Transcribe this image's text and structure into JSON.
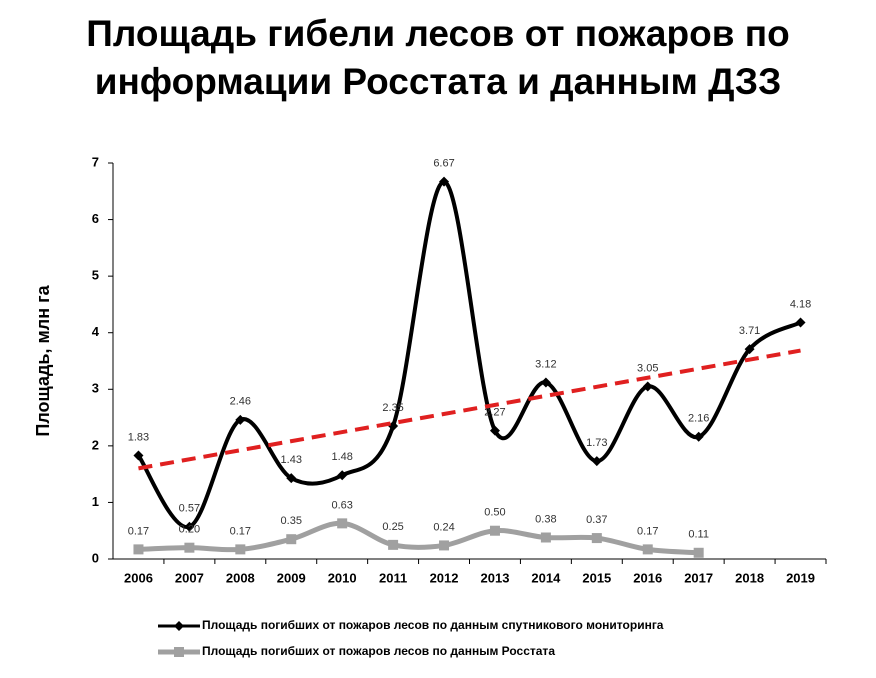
{
  "chart_data": {
    "type": "line",
    "title": "Площадь гибели лесов от пожаров по информации Росстата и данным ДЗЗ",
    "y_label": "Площадь, млн га",
    "categories": [
      "2006",
      "2007",
      "2008",
      "2009",
      "2010",
      "2011",
      "2012",
      "2013",
      "2014",
      "2015",
      "2016",
      "2017",
      "2018",
      "2019"
    ],
    "series": [
      {
        "name": "Площадь погибших от пожаров лесов по данным спутникового мониторинга",
        "color": "#000000",
        "marker": "diamond",
        "values": [
          1.83,
          0.57,
          2.46,
          1.43,
          1.48,
          2.35,
          6.67,
          2.27,
          3.12,
          1.73,
          3.05,
          2.16,
          3.71,
          4.18
        ],
        "value_labels": [
          "1.83",
          "0.57",
          "2.46",
          "1.43",
          "1.48",
          "2.35",
          "6.67",
          "2.27",
          "3.12",
          "1.73",
          "3.05",
          "2.16",
          "3.71",
          "4.18"
        ],
        "trendline": true,
        "trendline_color": "#e02020"
      },
      {
        "name": "Площадь погибших от пожаров лесов по данным Росстата",
        "color": "#a0a0a0",
        "marker": "square",
        "values": [
          0.17,
          0.2,
          0.17,
          0.35,
          0.63,
          0.25,
          0.24,
          0.5,
          0.38,
          0.37,
          0.17,
          0.11,
          null,
          null
        ],
        "value_labels": [
          "0.17",
          "0.20",
          "0.17",
          "0.35",
          "0.63",
          "0.25",
          "0.24",
          "0.50",
          "0.38",
          "0.37",
          "0.17",
          "0.11",
          null,
          null
        ]
      }
    ],
    "ylim": [
      0,
      7
    ],
    "yticks": [
      0,
      1,
      2,
      3,
      4,
      5,
      6,
      7
    ],
    "legend": "bottom"
  }
}
